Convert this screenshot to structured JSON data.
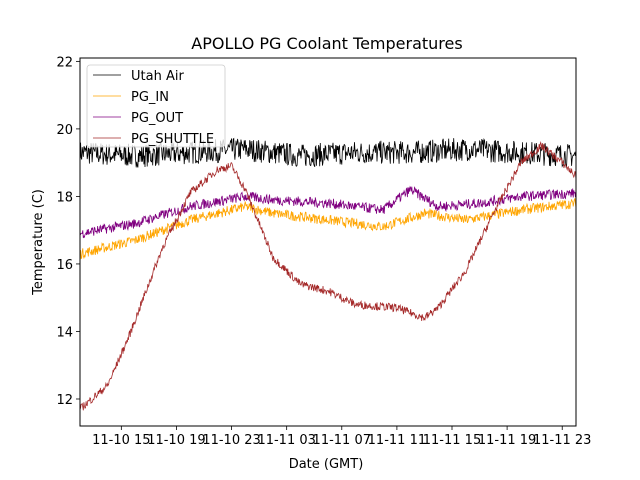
{
  "chart_data": {
    "type": "line",
    "title": "APOLLO PG Coolant Temperatures",
    "xlabel": "Date (GMT)",
    "ylabel": "Temperature (C)",
    "x_units": "hours since 11-10 00:00 GMT",
    "xlim": [
      12.0,
      48.0
    ],
    "ylim": [
      11.2,
      22.1
    ],
    "x_ticks": [
      15,
      19,
      23,
      27,
      31,
      35,
      39,
      43,
      47
    ],
    "x_tick_labels": [
      "11-10 15",
      "11-10 19",
      "11-10 23",
      "11-11 03",
      "11-11 07",
      "11-11 11",
      "11-11 15",
      "11-11 19",
      "11-11 23"
    ],
    "y_ticks": [
      12,
      14,
      16,
      18,
      20,
      22
    ],
    "y_tick_labels": [
      "12",
      "14",
      "16",
      "18",
      "20",
      "22"
    ],
    "grid": false,
    "legend_position": "top-left",
    "series": [
      {
        "name": "Utah Air",
        "color": "#000000",
        "noise": 0.35,
        "points": [
          [
            12,
            19.3
          ],
          [
            16,
            19.2
          ],
          [
            20,
            19.3
          ],
          [
            24,
            19.4
          ],
          [
            28,
            19.2
          ],
          [
            32,
            19.3
          ],
          [
            36,
            19.3
          ],
          [
            40,
            19.4
          ],
          [
            44,
            19.3
          ],
          [
            48,
            19.2
          ]
        ]
      },
      {
        "name": "PG_IN",
        "color": "#FFA500",
        "noise": 0.15,
        "points": [
          [
            12,
            16.3
          ],
          [
            16,
            16.7
          ],
          [
            20,
            17.3
          ],
          [
            24,
            17.7
          ],
          [
            26,
            17.5
          ],
          [
            30,
            17.3
          ],
          [
            34,
            17.1
          ],
          [
            37,
            17.5
          ],
          [
            40,
            17.3
          ],
          [
            44,
            17.6
          ],
          [
            48,
            17.8
          ]
        ]
      },
      {
        "name": "PG_OUT",
        "color": "#800080",
        "noise": 0.15,
        "points": [
          [
            12,
            16.9
          ],
          [
            16,
            17.2
          ],
          [
            20,
            17.7
          ],
          [
            24,
            18.0
          ],
          [
            26,
            17.9
          ],
          [
            30,
            17.8
          ],
          [
            34,
            17.6
          ],
          [
            36,
            18.2
          ],
          [
            38,
            17.7
          ],
          [
            41,
            17.8
          ],
          [
            44,
            18.0
          ],
          [
            48,
            18.1
          ]
        ]
      },
      {
        "name": "PG_SHUTTLE",
        "color": "#A52A2A",
        "noise": 0.12,
        "points": [
          [
            12,
            11.7
          ],
          [
            14,
            12.4
          ],
          [
            15.5,
            13.8
          ],
          [
            18,
            16.5
          ],
          [
            20,
            18.1
          ],
          [
            22,
            18.8
          ],
          [
            23,
            18.9
          ],
          [
            24,
            18.2
          ],
          [
            26,
            16.2
          ],
          [
            28,
            15.4
          ],
          [
            30,
            15.2
          ],
          [
            32,
            14.8
          ],
          [
            35,
            14.7
          ],
          [
            37,
            14.4
          ],
          [
            38,
            14.7
          ],
          [
            40,
            15.8
          ],
          [
            42,
            17.5
          ],
          [
            44,
            19.0
          ],
          [
            45.5,
            19.5
          ],
          [
            47,
            19.0
          ],
          [
            48,
            18.6
          ]
        ]
      }
    ]
  }
}
